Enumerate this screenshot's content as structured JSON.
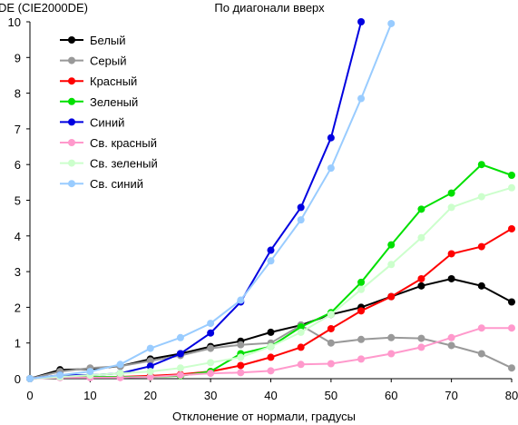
{
  "chart_data": {
    "type": "line",
    "title": "По диагонали вверх",
    "xlabel": "Отклонение от нормали, градусы",
    "ylabel": "DE (CIE2000DE)",
    "xlim": [
      0,
      80
    ],
    "ylim": [
      0,
      10
    ],
    "xticks": [
      0,
      10,
      20,
      30,
      40,
      50,
      60,
      70,
      80
    ],
    "yticks": [
      0,
      1,
      2,
      3,
      4,
      5,
      6,
      7,
      8,
      9,
      10
    ],
    "grid": false,
    "legend_position": "top-left",
    "x": [
      0,
      5,
      10,
      15,
      20,
      25,
      30,
      35,
      40,
      45,
      50,
      55,
      60,
      65,
      70,
      75,
      80
    ],
    "series": [
      {
        "name": "Белый",
        "color": "#000000",
        "values": [
          0,
          0.25,
          0.27,
          0.35,
          0.55,
          0.7,
          0.9,
          1.05,
          1.3,
          1.5,
          1.8,
          2.0,
          2.3,
          2.6,
          2.8,
          2.6,
          2.15
        ]
      },
      {
        "name": "Серый",
        "color": "#999999",
        "values": [
          0,
          0.2,
          0.3,
          0.35,
          0.5,
          0.65,
          0.85,
          0.95,
          1.0,
          1.5,
          1.0,
          1.1,
          1.15,
          1.13,
          0.93,
          0.7,
          0.3
        ]
      },
      {
        "name": "Красный",
        "color": "#ff0000",
        "values": [
          0,
          0.05,
          0.05,
          0.05,
          0.08,
          0.12,
          0.2,
          0.37,
          0.6,
          0.88,
          1.4,
          1.9,
          2.3,
          2.8,
          3.5,
          3.7,
          4.2
        ]
      },
      {
        "name": "Зеленый",
        "color": "#00e000",
        "values": [
          0,
          0.05,
          0.05,
          0.05,
          0.05,
          0.08,
          0.2,
          0.7,
          0.9,
          1.45,
          1.85,
          2.7,
          3.75,
          4.75,
          5.2,
          6.0,
          5.7
        ]
      },
      {
        "name": "Синий",
        "color": "#0000e0",
        "values": [
          0,
          0.1,
          0.1,
          0.15,
          0.35,
          0.7,
          1.28,
          2.15,
          3.6,
          4.8,
          6.75,
          10.0,
          null,
          null,
          null,
          null,
          null
        ]
      },
      {
        "name": "Св. красный",
        "color": "#ff99cc",
        "values": [
          0,
          0.03,
          0.03,
          0.03,
          0.05,
          0.1,
          0.15,
          0.17,
          0.22,
          0.4,
          0.42,
          0.55,
          0.7,
          0.88,
          1.15,
          1.42,
          1.42
        ]
      },
      {
        "name": "Св. зеленый",
        "color": "#ccffcc",
        "values": [
          0,
          0.05,
          0.1,
          0.15,
          0.2,
          0.3,
          0.45,
          0.6,
          0.9,
          1.3,
          1.8,
          2.5,
          3.2,
          3.95,
          4.8,
          5.1,
          5.35
        ]
      },
      {
        "name": "Св. синий",
        "color": "#99ccff",
        "values": [
          0,
          0.1,
          0.2,
          0.4,
          0.85,
          1.15,
          1.55,
          2.2,
          3.3,
          4.45,
          5.9,
          7.85,
          9.95,
          null,
          null,
          null,
          null
        ]
      }
    ]
  }
}
